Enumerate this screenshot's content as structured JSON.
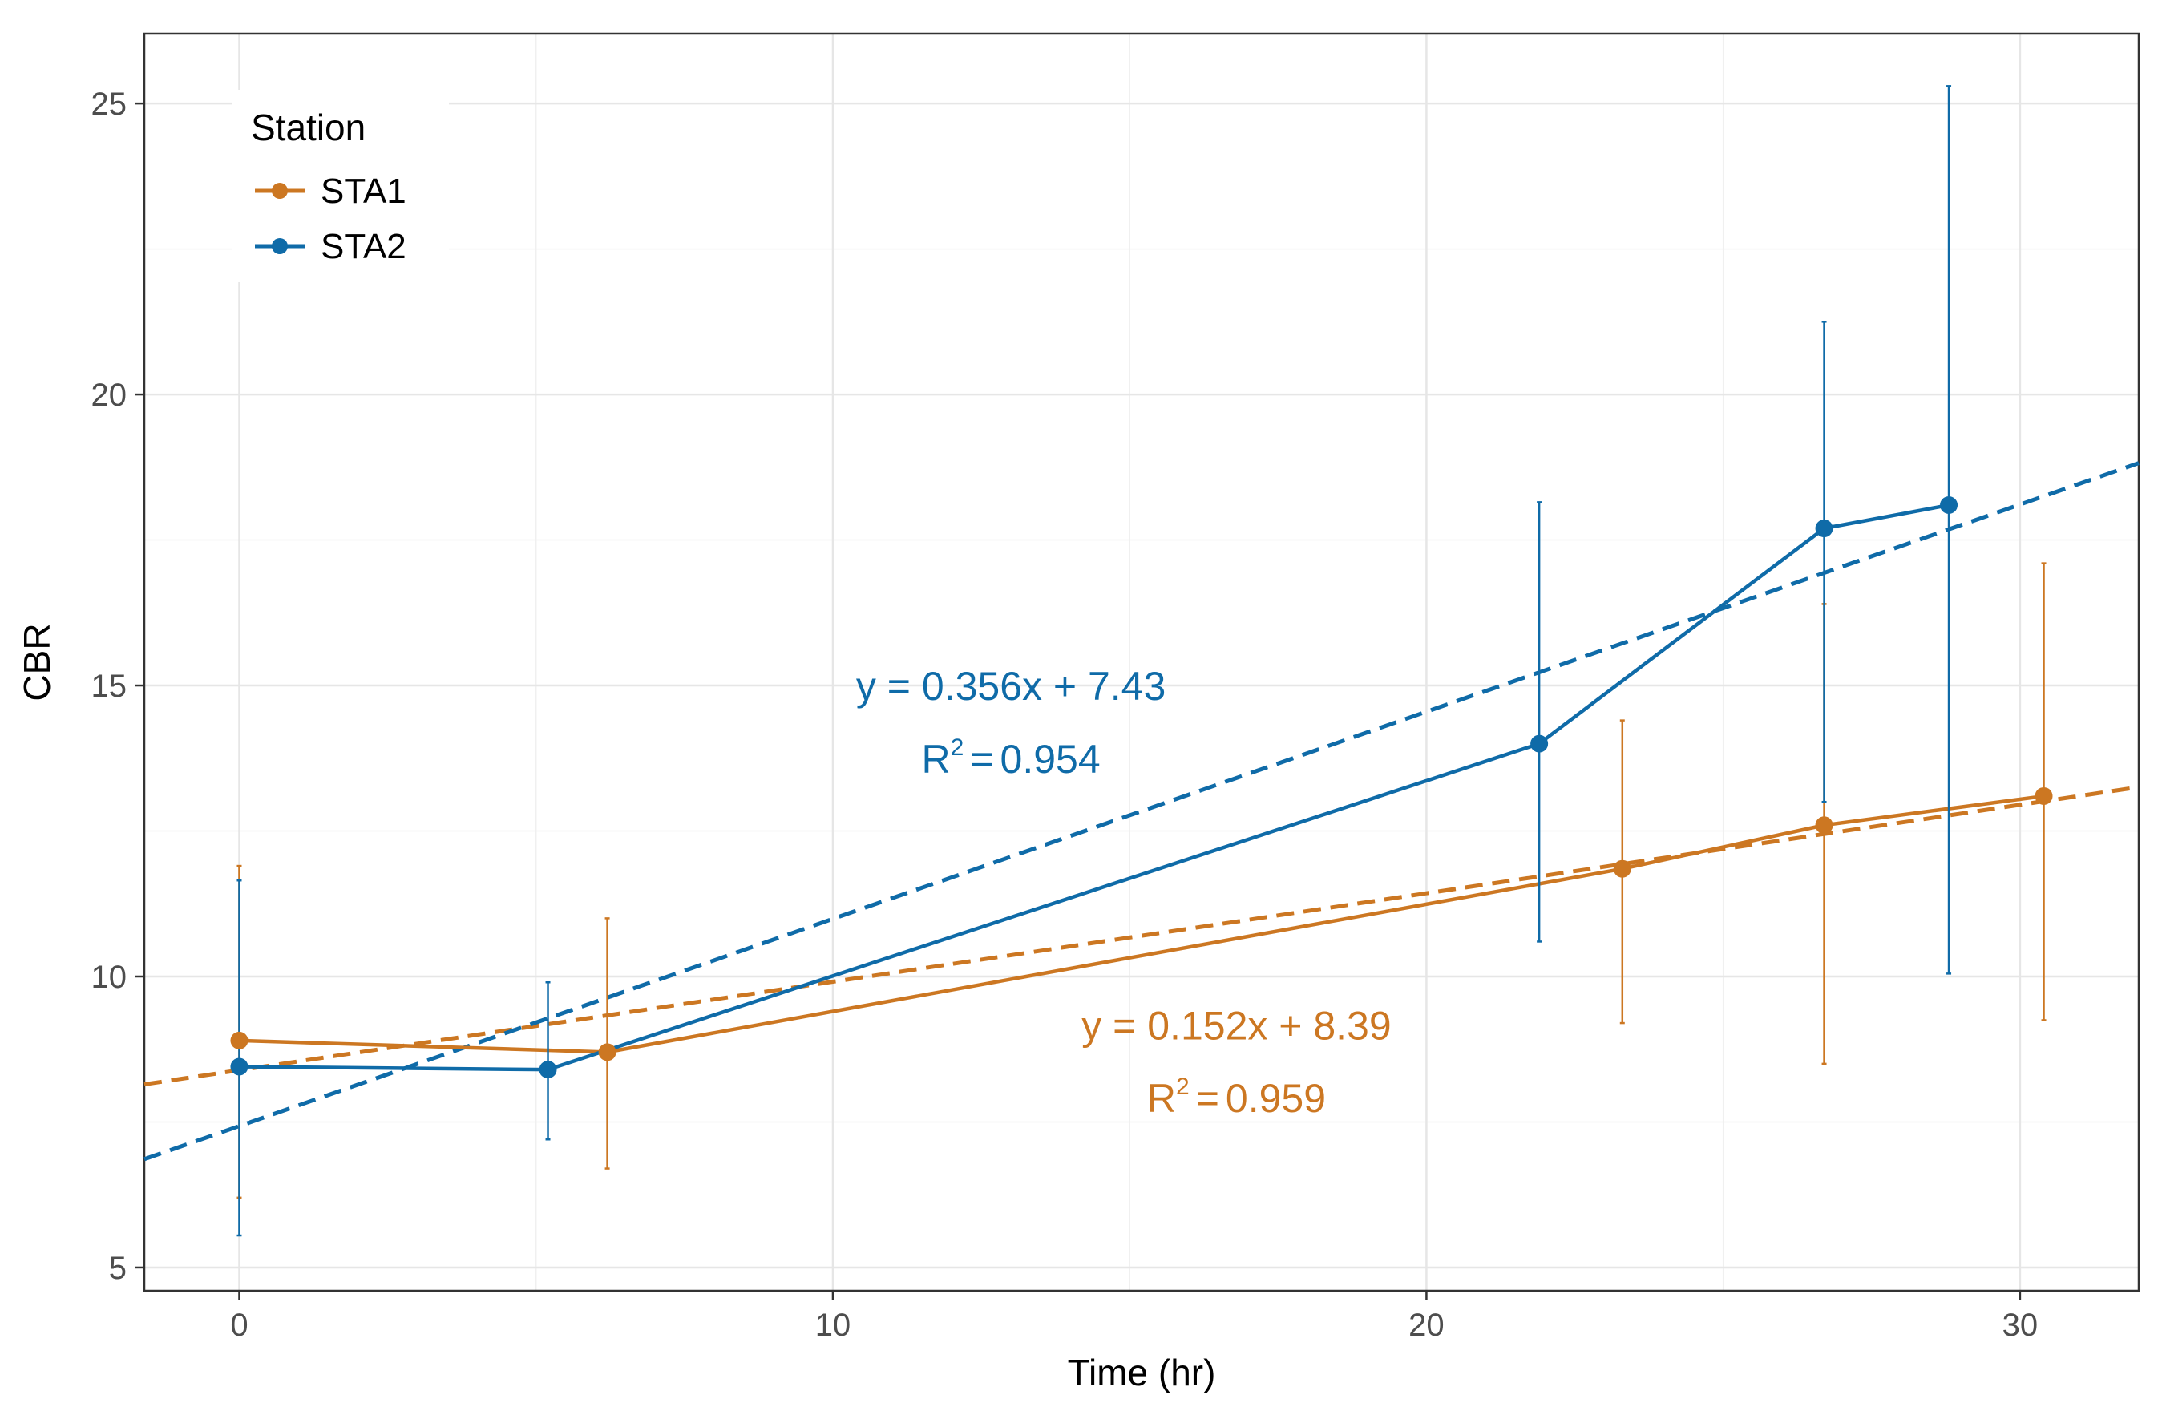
{
  "chart_data": {
    "type": "line",
    "title": "",
    "xlabel": "Time (hr)",
    "ylabel": "CBR",
    "xlim": [
      -1.6,
      32
    ],
    "ylim": [
      4.6,
      26.2
    ],
    "xticks": [
      0,
      10,
      20,
      30
    ],
    "yticks": [
      5,
      10,
      15,
      20,
      25
    ],
    "grid": true,
    "legend": {
      "title": "Station",
      "position": "top-left",
      "entries": [
        "STA1",
        "STA2"
      ]
    },
    "series": [
      {
        "name": "STA1",
        "color": "#CC7722",
        "x": [
          0,
          6.2,
          23.3,
          26.7,
          30.4
        ],
        "y": [
          8.9,
          8.7,
          11.85,
          12.6,
          13.1
        ],
        "ymin": [
          6.2,
          6.7,
          9.2,
          8.5,
          9.25
        ],
        "ymax": [
          11.9,
          11.0,
          14.4,
          16.4,
          17.1
        ],
        "fit": {
          "slope": 0.152,
          "intercept": 8.39
        },
        "equation": "y = 0.152x + 8.39",
        "r2_label": "R",
        "r2_value": "0.959"
      },
      {
        "name": "STA2",
        "color": "#0F6BA8",
        "x": [
          0,
          5.2,
          21.9,
          26.7,
          28.8
        ],
        "y": [
          8.45,
          8.4,
          14.0,
          17.7,
          18.1
        ],
        "ymin": [
          5.55,
          7.2,
          10.6,
          13.0,
          10.05
        ],
        "ymax": [
          11.65,
          9.9,
          18.15,
          21.25,
          25.3
        ],
        "fit": {
          "slope": 0.356,
          "intercept": 7.43
        },
        "equation": "y = 0.356x + 7.43",
        "r2_label": "R",
        "r2_value": "0.954"
      }
    ],
    "annotations": {
      "superscript": "2",
      "equals": "="
    }
  }
}
